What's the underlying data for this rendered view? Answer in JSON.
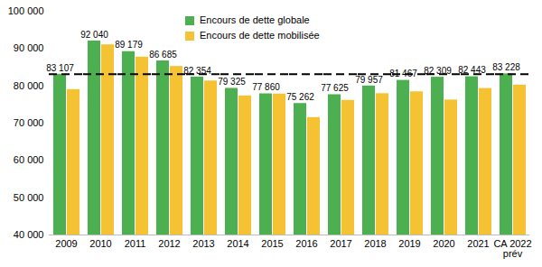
{
  "chart_data": {
    "type": "bar",
    "categories": [
      "2009",
      "2010",
      "2011",
      "2012",
      "2013",
      "2014",
      "2015",
      "2016",
      "2017",
      "2018",
      "2019",
      "2020",
      "2021",
      "CA 2022\nprév"
    ],
    "series": [
      {
        "name": "Encours de dette globale",
        "color": "#4cb050",
        "values": [
          83107,
          92040,
          89179,
          86685,
          82354,
          79325,
          77860,
          75262,
          77625,
          79957,
          81467,
          82309,
          82443,
          83228
        ],
        "data_labels": true,
        "value_labels": [
          "83 107",
          "92 040",
          "89 179",
          "86 685",
          "82 354",
          "79 325",
          "77 860",
          "75 262",
          "77 625",
          "79 957",
          "81 467",
          "82 309",
          "82 443",
          "83 228"
        ]
      },
      {
        "name": "Encours de dette mobilisée",
        "color": "#f5c233",
        "values": [
          79000,
          91000,
          87700,
          85200,
          81300,
          77300,
          77800,
          71500,
          76100,
          77900,
          78400,
          76200,
          79300,
          80200
        ]
      }
    ],
    "ylim": [
      40000,
      100000
    ],
    "yticks": [
      {
        "value": 40000,
        "label": "40 000"
      },
      {
        "value": 50000,
        "label": "50 000"
      },
      {
        "value": 60000,
        "label": "60 000"
      },
      {
        "value": 70000,
        "label": "70 000"
      },
      {
        "value": 80000,
        "label": "80 000"
      },
      {
        "value": 90000,
        "label": "90 000"
      },
      {
        "value": 100000,
        "label": "100 000"
      }
    ],
    "reference_lines": [
      {
        "value": 83107,
        "line_style": "dashed"
      }
    ],
    "grid": false,
    "legend": "top-left"
  }
}
